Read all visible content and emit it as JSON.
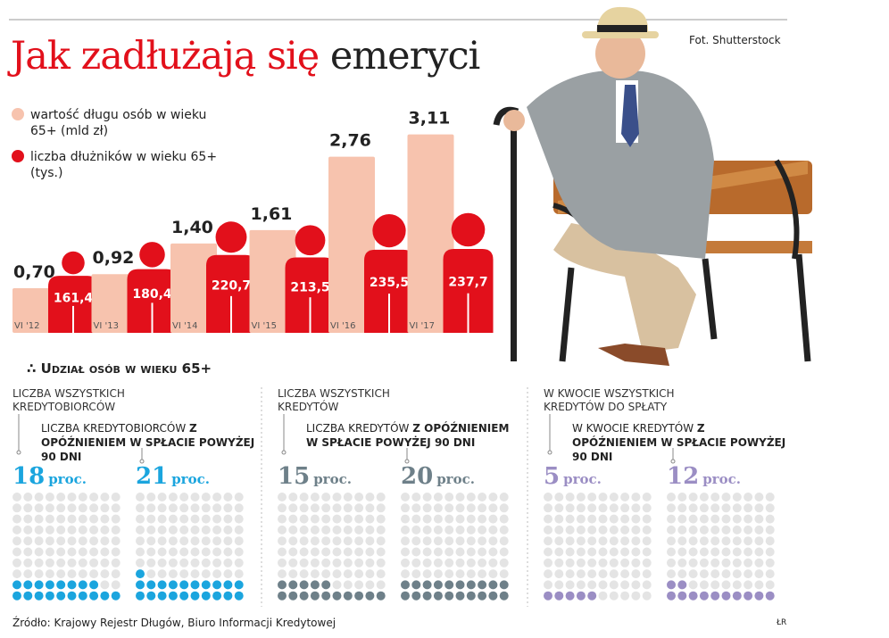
{
  "title_red": "Jak zadłużają się",
  "title_black": "emeryci",
  "photo_credit": "Fot. Shutterstock",
  "chart_data": [
    {
      "type": "bar",
      "categories": [
        "VI '12",
        "VI '13",
        "VI '14",
        "VI '15",
        "VI '16",
        "VI '17"
      ],
      "series": [
        {
          "name": "wartość długu osób w wieku 65+ (mld zł)",
          "color": "#f7c3ae",
          "values": [
            0.7,
            0.92,
            1.4,
            1.61,
            2.76,
            3.11
          ],
          "value_labels": [
            "0,70",
            "0,92",
            "1,40",
            "1,61",
            "2,76",
            "3,11"
          ]
        },
        {
          "name": "liczba dłużników w wieku 65+ (tys.)",
          "color": "#e2101b",
          "values": [
            161.4,
            180.4,
            220.7,
            213.5,
            235.5,
            237.7
          ],
          "value_labels": [
            "161,4",
            "180,4",
            "220,7",
            "213,5",
            "235,5",
            "237,7"
          ]
        }
      ]
    },
    {
      "type": "waffle",
      "title": "Udział osób w wieku 65+",
      "unit": "proc.",
      "groups": [
        {
          "color": "#1ba5de",
          "label": "LICZBA WSZYSTKICH KREDYTOBIORCÓW",
          "sub_label": "LICZBA KREDYTOBIORCÓW",
          "sub_label_bold": "Z OPÓŹNIENIEM W SPŁACIE POWYŻEJ 90 DNI",
          "values": [
            18,
            21
          ]
        },
        {
          "color": "#6e8089",
          "label": "LICZBA WSZYSTKICH KREDYTÓW",
          "sub_label": "LICZBA KREDYTÓW",
          "sub_label_bold": "Z OPÓŹNIENIEM W SPŁACIE POWYŻEJ 90 DNI",
          "values": [
            15,
            20
          ]
        },
        {
          "color": "#9b8ec4",
          "label": "W KWOCIE WSZYSTKICH KREDYTÓW DO SPŁATY",
          "sub_label": "W KWOCIE KREDYTÓW",
          "sub_label_bold": "Z OPÓŹNIENIEM W SPŁACIE POWYŻEJ 90 DNI",
          "values": [
            5,
            12
          ]
        }
      ]
    }
  ],
  "source": "Źródło: Krajowy Rejestr Długów, Biuro Informacji Kredytowej",
  "signature": "ŁR"
}
